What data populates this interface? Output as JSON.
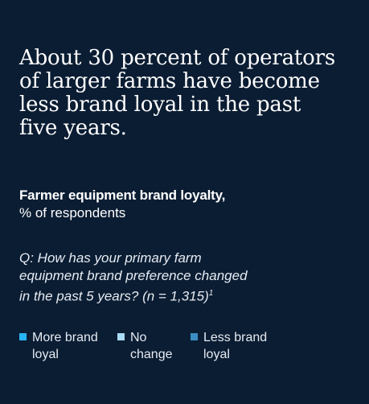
{
  "header": {
    "title_lines": [
      "About 30 percent of operators",
      "of larger farms have become",
      "less brand loyal in the past",
      "five years."
    ],
    "subtitle_strong": "Farmer equipment brand loyalty,",
    "subtitle_light": "% of respondents",
    "question_lines": [
      "Q: How has your primary farm",
      "equipment brand preference changed",
      "in the past 5 years? (n = 1,315)"
    ],
    "footnote_marker": "1"
  },
  "colors": {
    "background": "#0b1d33",
    "more_brand_loyal": "#27b5f5",
    "no_change": "#a9dcf5",
    "less_brand_loyal": "#3c8fc4"
  },
  "chart_data": {
    "type": "bar",
    "title": "Farmer equipment brand loyalty,",
    "ylabel": "% of respondents",
    "series": [
      {
        "name": "More brand loyal",
        "values": []
      },
      {
        "name": "No change",
        "values": []
      },
      {
        "name": "Less brand loyal",
        "values": []
      }
    ],
    "legend": {
      "position": "top-left",
      "items": [
        {
          "lines": [
            "More brand",
            "loyal"
          ],
          "color": "#27b5f5"
        },
        {
          "lines": [
            "No",
            "change"
          ],
          "color": "#a9dcf5"
        },
        {
          "lines": [
            "Less brand",
            "loyal"
          ],
          "color": "#3c8fc4"
        }
      ]
    }
  }
}
